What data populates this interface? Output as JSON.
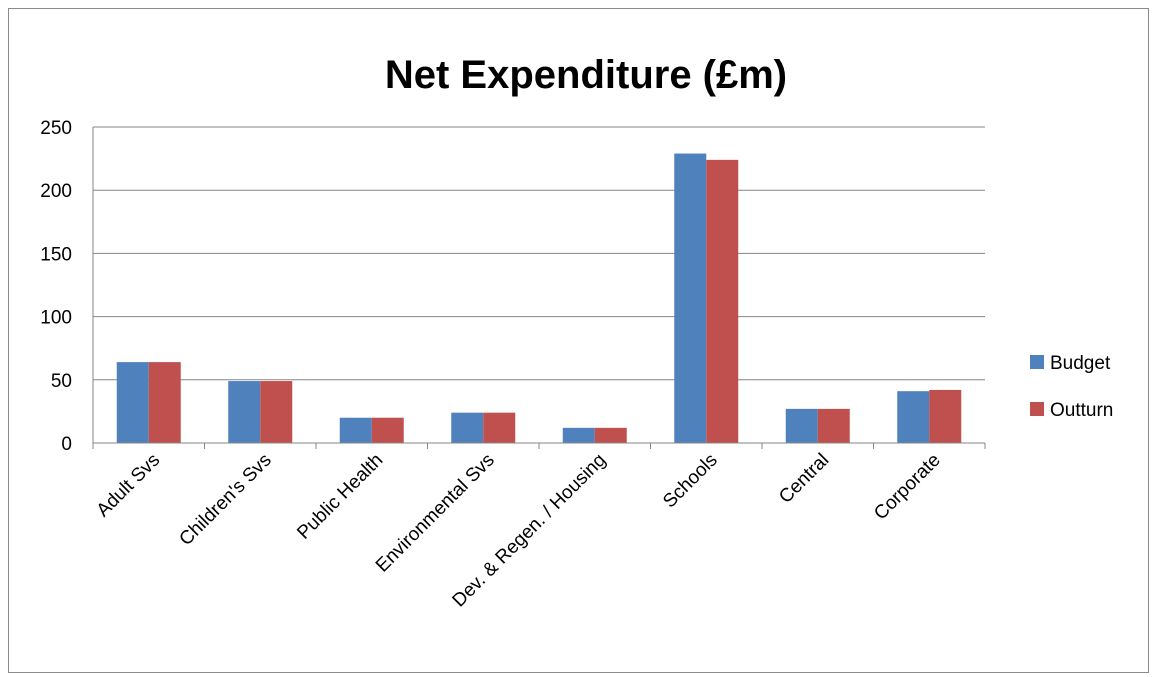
{
  "chart_data": {
    "type": "bar",
    "title": "Net Expenditure (£m)",
    "categories": [
      "Adult Svs",
      "Children's Svs",
      "Public Health",
      "Environmental Svs",
      "Dev. & Regen. / Housing",
      "Schools",
      "Central",
      "Corporate"
    ],
    "series": [
      {
        "name": "Budget",
        "color": "#4F81BD",
        "values": [
          64,
          49,
          20,
          24,
          12,
          229,
          27,
          41
        ]
      },
      {
        "name": "Outturn",
        "color": "#C0504D",
        "values": [
          64,
          49,
          20,
          24,
          12,
          224,
          27,
          42
        ]
      }
    ],
    "ylim": [
      0,
      250
    ],
    "yticks": [
      "0",
      "50",
      "100",
      "150",
      "200",
      "250"
    ],
    "grid": true,
    "legend_position": "right"
  }
}
